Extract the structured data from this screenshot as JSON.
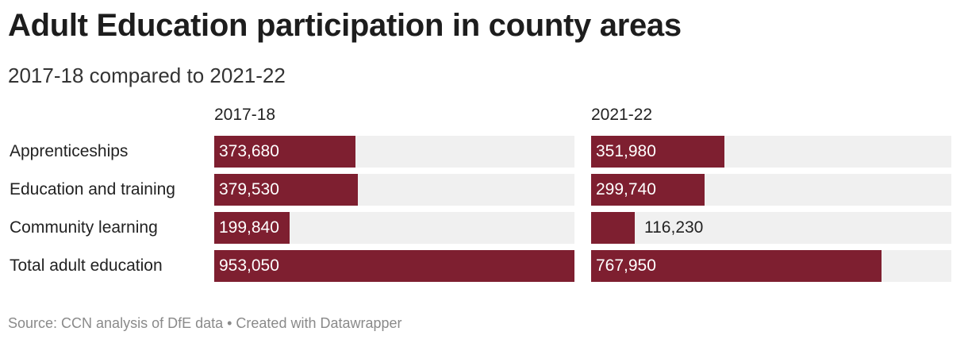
{
  "title": "Adult Education participation in county areas",
  "subtitle": "2017-18 compared to 2021-22",
  "source": "Source: CCN analysis of DfE data • Created with Datawrapper",
  "colors": {
    "bar": "#7e1f30",
    "track": "#f0f0f0",
    "text": "#222222",
    "source": "#8a8a8a"
  },
  "chart_data": {
    "type": "bar",
    "orientation": "horizontal",
    "title": "Adult Education participation in county areas",
    "subtitle": "2017-18 compared to 2021-22",
    "categories": [
      "Apprenticeships",
      "Education and training",
      "Community learning",
      "Total adult education"
    ],
    "series": [
      {
        "name": "2017-18",
        "values": [
          373680,
          379530,
          199840,
          953050
        ]
      },
      {
        "name": "2021-22",
        "values": [
          351980,
          299740,
          116230,
          767950
        ]
      }
    ],
    "labels": [
      [
        "373,680",
        "379,530",
        "199,840",
        "953,050"
      ],
      [
        "351,980",
        "299,740",
        "116,230",
        "767,950"
      ]
    ],
    "xlim": [
      0,
      953050
    ],
    "xlabel": "",
    "ylabel": "",
    "grid": false
  }
}
